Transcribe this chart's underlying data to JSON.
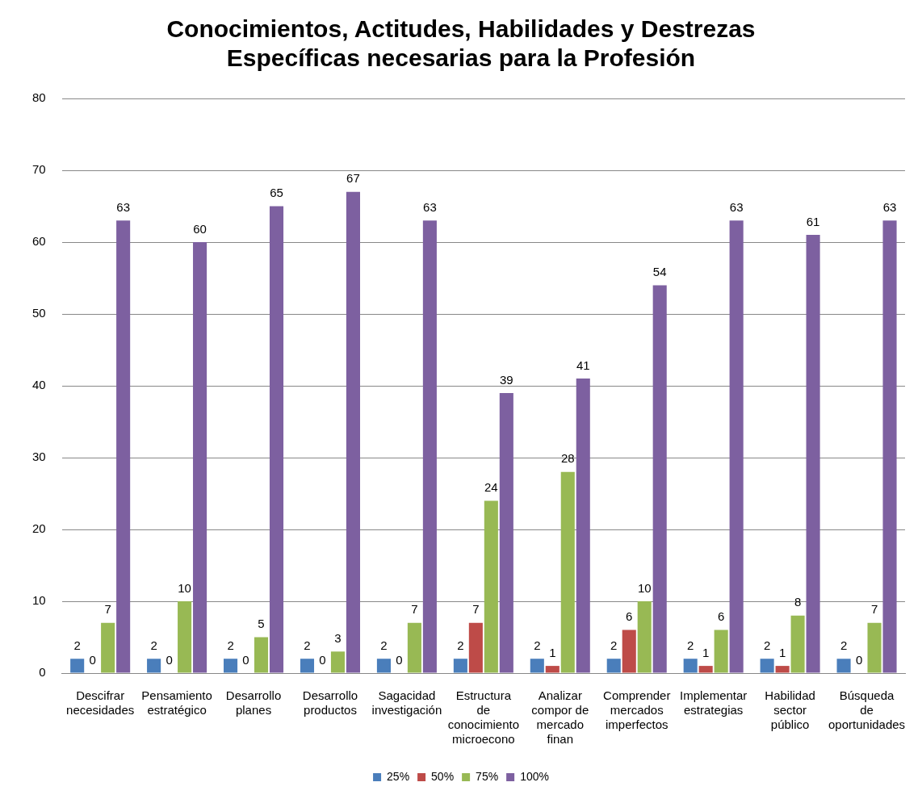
{
  "chart_data": {
    "type": "bar",
    "title": "Conocimientos, Actitudes, Habilidades y Destrezas Específicas necesarias para la Profesión",
    "categories": [
      "Descifrar necesidades",
      "Pensamiento estratégico",
      "Desarrollo planes",
      "Desarrollo productos",
      "Sagacidad investigación",
      "Estructura de conocimiento microecono",
      "Analizar compor de mercado finan",
      "Comprender mercados imperfectos",
      "Implementar estrategias",
      "Habilidad sector público",
      "Búsqueda de oportunidades"
    ],
    "series": [
      {
        "name": "25%",
        "color": "#4a7ebb",
        "values": [
          2,
          2,
          2,
          2,
          2,
          2,
          2,
          2,
          2,
          2,
          2
        ]
      },
      {
        "name": "50%",
        "color": "#be4b48",
        "values": [
          0,
          0,
          0,
          0,
          0,
          7,
          1,
          6,
          1,
          1,
          0
        ]
      },
      {
        "name": "75%",
        "color": "#98b954",
        "values": [
          7,
          10,
          5,
          3,
          7,
          24,
          28,
          10,
          6,
          8,
          7
        ]
      },
      {
        "name": "100%",
        "color": "#7d60a0",
        "values": [
          63,
          60,
          65,
          67,
          63,
          39,
          41,
          54,
          63,
          61,
          63
        ]
      }
    ],
    "ylim": [
      0,
      80
    ],
    "yticks": [
      0,
      10,
      20,
      30,
      40,
      50,
      60,
      70,
      80
    ],
    "grid": "y",
    "legend": "bottom",
    "data_labels": true
  }
}
